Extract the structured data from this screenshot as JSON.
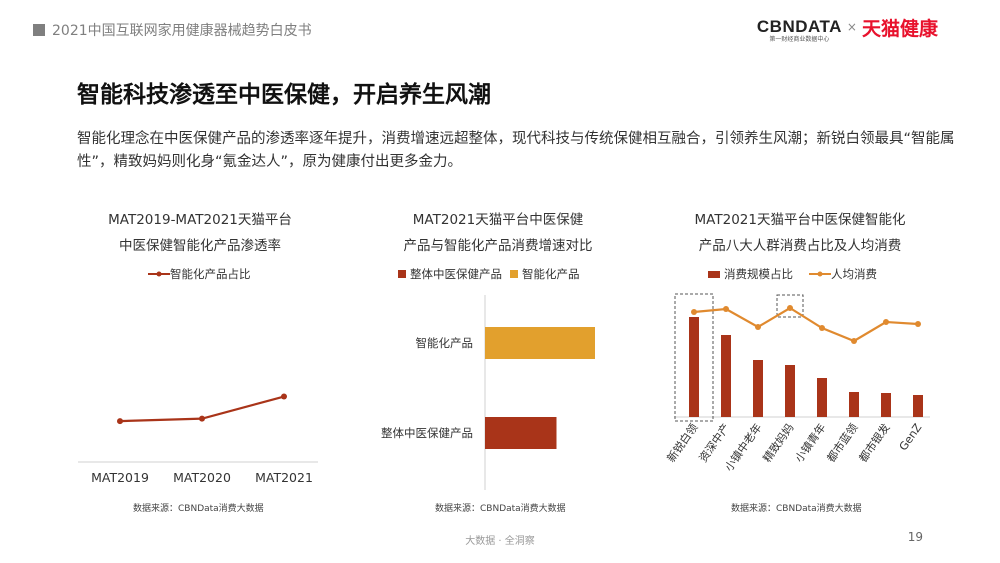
{
  "header": {
    "report_title": "2021中国互联网家用健康器械趋势白皮书"
  },
  "logo": {
    "cbn_main": "CBNDATA",
    "cbn_sub": "第一财经商业数据中心",
    "times": "×",
    "tmall": "天猫健康"
  },
  "main_title": "智能科技渗透至中医保健，开启养生风潮",
  "intro": "智能化理念在中医保健产品的渗透率逐年提升，消费增速远超整体，现代科技与传统保健相互融合，引领养生风潮；新锐白领最具“智能属性”，精致妈妈则化身“氪金达人”，原为健康付出更多金力。",
  "colors": {
    "dark_red": "#a93419",
    "orange": "#e2a02d",
    "accent_red": "#e8122d"
  },
  "footer": {
    "center": "大数据 · 全洞察",
    "page": "19"
  },
  "chart_data": [
    {
      "type": "line",
      "title": [
        "MAT2019-MAT2021天猫平台",
        "中医保健智能化产品渗透率"
      ],
      "legend_position": "top",
      "x": [
        "MAT2019",
        "MAT2020",
        "MAT2021"
      ],
      "series": [
        {
          "name": "智能化产品占比",
          "values": [
            0.5,
            0.53,
            0.8
          ],
          "color": "#a93419"
        }
      ],
      "ylim": [
        0,
        2.2
      ],
      "source": "数据来源：CBNData消费大数据"
    },
    {
      "type": "bar",
      "orientation": "horizontal",
      "title": [
        "MAT2021天猫平台中医保健",
        "产品与智能化产品消费增速对比"
      ],
      "legend_position": "top",
      "legend": [
        {
          "name": "整体中医保健产品",
          "color": "#a93419"
        },
        {
          "name": "智能化产品",
          "color": "#e2a02d"
        }
      ],
      "categories": [
        "智能化产品",
        "整体中医保健产品"
      ],
      "values": [
        100,
        65
      ],
      "bar_colors": [
        "#e2a02d",
        "#a93419"
      ],
      "xlim": [
        0,
        120
      ],
      "source": "数据来源：CBNData消费大数据"
    },
    {
      "type": "bar",
      "title": [
        "MAT2021天猫平台中医保健智能化",
        "产品八大人群消费占比及人均消费"
      ],
      "legend_position": "top",
      "categories": [
        "新锐白领",
        "资深中产",
        "小镇中老年",
        "精致妈妈",
        "小镇青年",
        "都市蓝领",
        "都市银发",
        "GenZ"
      ],
      "series": [
        {
          "name": "消费规模占比",
          "type": "bar",
          "values": [
            100,
            82,
            57,
            52,
            39,
            25,
            24,
            22
          ],
          "color": "#a93419"
        },
        {
          "name": "人均消费",
          "type": "line",
          "values": [
            83,
            86,
            68,
            87,
            67,
            54,
            73,
            71
          ],
          "color": "#e08a2f"
        }
      ],
      "ylim": [
        0,
        100
      ],
      "highlights": [
        "新锐白领 消费规模占比",
        "精致妈妈 人均消费"
      ],
      "source": "数据来源：CBNData消费大数据"
    }
  ]
}
